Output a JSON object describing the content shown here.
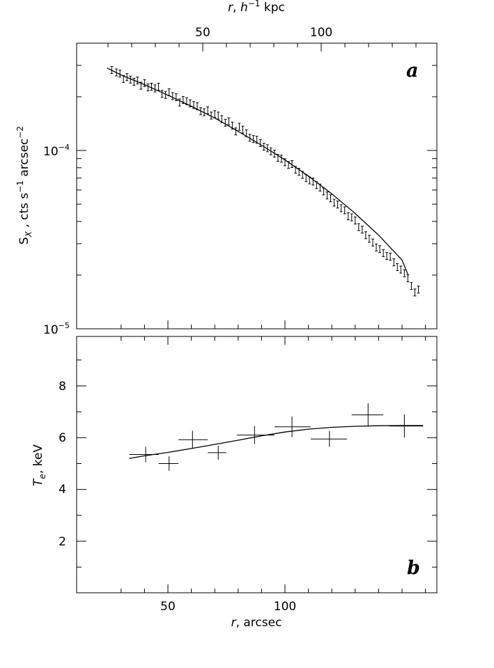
{
  "chart_data": [
    {
      "type": "scatter",
      "panel_label": "a",
      "ylabel": "S_X , cts s^-1 arcsec^-2",
      "ylabel_parts": {
        "main": "S",
        "sub": "X",
        "mid": " , cts s",
        "sup1": "−1",
        "mid2": " arcsec",
        "sup2": "−2"
      },
      "yscale": "log",
      "ylim": [
        1e-05,
        0.00035
      ],
      "ytick_labels": [
        {
          "value": 0.0001,
          "base": "10",
          "exp": "−4"
        },
        {
          "value": 1e-05,
          "base": "10",
          "exp": "−5"
        }
      ],
      "xlim": [
        23,
        170
      ],
      "top_axis": {
        "xlabel_parts": {
          "r": "r",
          "mid": ", ",
          "h": "h",
          "sup": "−1",
          "unit": " kpc"
        },
        "ticks": [
          {
            "label": "50",
            "x": 58
          },
          {
            "label": "100",
            "x": 116
          }
        ]
      },
      "series": [
        {
          "kind": "errorbars",
          "x": [
            26,
            28,
            29.5,
            31,
            32.5,
            34,
            35.5,
            37,
            38.5,
            40,
            41.5,
            43,
            44.5,
            46,
            47.5,
            49,
            50.5,
            52,
            53.5,
            55,
            56.5,
            58,
            59.5,
            61,
            62.5,
            64,
            65.5,
            67,
            68.5,
            70,
            71.5,
            73,
            74.5,
            76,
            77.5,
            79,
            80.5,
            82,
            83.5,
            85,
            86.5,
            88,
            89.5,
            91,
            92.5,
            94,
            95.5,
            97,
            98.5,
            100,
            101.5,
            103,
            104.5,
            106,
            107.5,
            109,
            110.5,
            112,
            113.5,
            115,
            116.5,
            118,
            119.5,
            121,
            122.5,
            124,
            125.5,
            127,
            128.5,
            130,
            131.5,
            133,
            134.5,
            136,
            137.5,
            139,
            140.5,
            142,
            143.5,
            145,
            146.5,
            148,
            149.5,
            151,
            152.5,
            154,
            155.5,
            157
          ],
          "y": [
            0.000283,
            0.000274,
            0.00027,
            0.000252,
            0.000258,
            0.00025,
            0.000243,
            0.000247,
            0.000231,
            0.000239,
            0.000226,
            0.000228,
            0.000223,
            0.000228,
            0.000208,
            0.000205,
            0.000212,
            0.000202,
            0.000199,
            0.000186,
            0.000192,
            0.000189,
            0.000184,
            0.00018,
            0.000177,
            0.000166,
            0.000164,
            0.000168,
            0.000157,
            0.00016,
            0.000157,
            0.00015,
            0.000143,
            0.000146,
            0.000138,
            0.000128,
            0.000136,
            0.000131,
            0.000125,
            0.000118,
            0.000116,
            0.000115,
            0.00011,
            0.000105,
            0.000103,
            9.9e-05,
            9.6e-05,
            9.1e-05,
            9e-05,
            8.6e-05,
            8.3e-05,
            8.4e-05,
            7.8e-05,
            7.6e-05,
            7.3e-05,
            7e-05,
            6.8e-05,
            6.7e-05,
            6.4e-05,
            6.2e-05,
            5.9e-05,
            5.6e-05,
            5.4e-05,
            5.1e-05,
            4.98e-05,
            4.75e-05,
            4.62e-05,
            4.28e-05,
            4.22e-05,
            4.05e-05,
            3.72e-05,
            3.6e-05,
            3.35e-05,
            3.2e-05,
            3.05e-05,
            2.86e-05,
            2.8e-05,
            2.66e-05,
            2.56e-05,
            2.54e-05,
            2.36e-05,
            2.22e-05,
            2.15e-05,
            2.05e-05,
            1.92e-05,
            1.74e-05,
            1.6e-05,
            1.66e-05
          ],
          "rel_err": 0.045
        },
        {
          "kind": "line",
          "x": [
            24,
            30,
            40,
            50,
            60,
            70,
            80,
            90,
            100,
            110,
            120,
            130,
            140,
            150,
            152.5
          ],
          "y": [
            0.00029,
            0.000265,
            0.000234,
            0.000204,
            0.000177,
            0.000152,
            0.000128,
            0.000107,
            8.85e-05,
            7.18e-05,
            5.71e-05,
            4.43e-05,
            3.35e-05,
            2.43e-05,
            2.02e-05
          ]
        }
      ]
    },
    {
      "type": "scatter",
      "panel_label": "b",
      "xlabel_parts": {
        "r": "r",
        "unit": ", arcsec"
      },
      "ylabel_parts": {
        "t": "T",
        "sub": "e",
        "unit": ", keV"
      },
      "ylim": [
        0,
        10
      ],
      "xlim": [
        23,
        170
      ],
      "ytick_labels": [
        {
          "label": "2",
          "value": 2
        },
        {
          "label": "4",
          "value": 4
        },
        {
          "label": "6",
          "value": 6
        },
        {
          "label": "8",
          "value": 8
        }
      ],
      "xtick_labels": [
        {
          "label": "50",
          "value": 50
        },
        {
          "label": "100",
          "value": 100
        }
      ],
      "series": [
        {
          "kind": "crosses",
          "x": [
            40.5,
            50.5,
            60.5,
            71.5,
            87,
            103,
            119,
            135.5,
            151
          ],
          "xlo": [
            33.5,
            46,
            54.5,
            67,
            79.5,
            95.5,
            111,
            128.5,
            144.5
          ],
          "xhi": [
            46,
            54.5,
            67,
            75,
            95.5,
            111,
            126.5,
            142,
            159
          ],
          "y": [
            5.35,
            5.0,
            5.92,
            5.42,
            6.1,
            6.42,
            5.95,
            6.88,
            6.45
          ],
          "yerr": [
            0.3,
            0.28,
            0.35,
            0.27,
            0.35,
            0.4,
            0.3,
            0.45,
            0.45
          ]
        },
        {
          "kind": "line",
          "x": [
            33.5,
            40,
            50,
            60,
            70,
            80,
            90,
            100,
            110,
            120,
            130,
            140,
            150,
            159
          ],
          "y": [
            5.2,
            5.3,
            5.43,
            5.58,
            5.74,
            5.9,
            6.07,
            6.22,
            6.33,
            6.4,
            6.44,
            6.46,
            6.47,
            6.47
          ]
        }
      ]
    }
  ]
}
